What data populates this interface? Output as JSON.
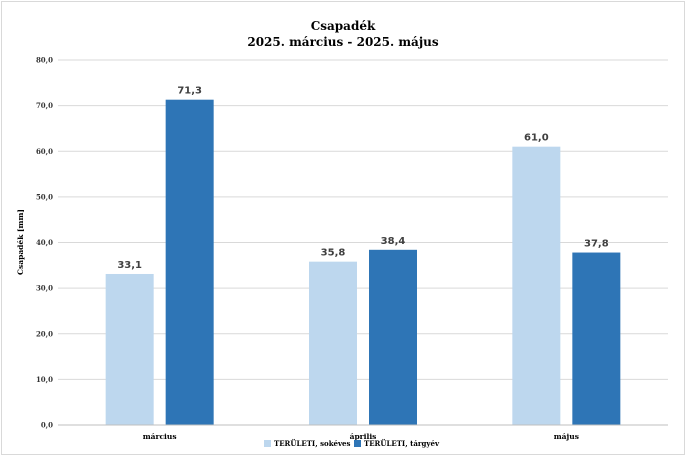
{
  "chart_data": {
    "type": "bar",
    "title": "Csapadék",
    "subtitle": "2025. március - 2025. május",
    "ylabel": "Csapadék [mm]",
    "xlabel": "",
    "categories": [
      "március",
      "április",
      "május"
    ],
    "series": [
      {
        "name": "TERÜLETI, sokéves",
        "values": [
          33.1,
          35.8,
          61.0
        ],
        "color": "#bdd7ee"
      },
      {
        "name": "TERÜLETI, tárgyév",
        "values": [
          71.3,
          38.4,
          37.8
        ],
        "color": "#2e75b6"
      }
    ],
    "value_labels": [
      [
        "33,1",
        "35,8",
        "61,0"
      ],
      [
        "71,3",
        "38,4",
        "37,8"
      ]
    ],
    "ylim": [
      0,
      80
    ],
    "yticks": [
      0,
      10,
      20,
      30,
      40,
      50,
      60,
      70,
      80
    ],
    "ytick_labels": [
      "0,0",
      "10,0",
      "20,0",
      "30,0",
      "40,0",
      "50,0",
      "60,0",
      "70,0",
      "80,0"
    ],
    "grid": true,
    "legend_position": "bottom"
  }
}
